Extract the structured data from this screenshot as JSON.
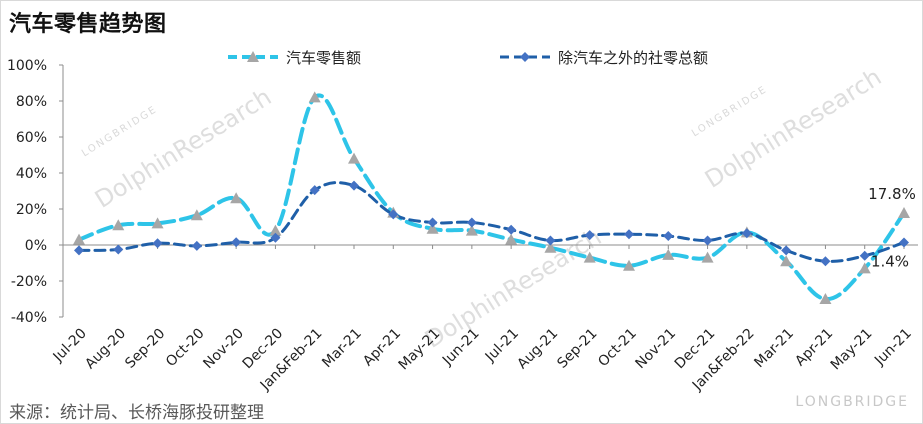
{
  "title": "汽车零售趋势图",
  "source": "来源：统计局、长桥海豚投研整理",
  "watermark": {
    "brand": "DolphinResearch",
    "sub": "LONGBRIDGE",
    "corner": "LONGBRIDGE"
  },
  "colors": {
    "auto": "#2ec4e8",
    "non_auto": "#1f5fa8",
    "marker_auto": "#a6a6a6",
    "marker_non_auto": "#4472c4"
  },
  "chart_data": {
    "type": "line",
    "title": "汽车零售趋势图",
    "categories": [
      "Jul-20",
      "Aug-20",
      "Sep-20",
      "Oct-20",
      "Nov-20",
      "Dec-20",
      "Jan&Feb-21",
      "Mar-21",
      "Apr-21",
      "May-21",
      "Jun-21",
      "Jul-21",
      "Aug-21",
      "Sep-21",
      "Oct-21",
      "Nov-21",
      "Dec-21",
      "Jan&Feb-22",
      "Mar-21",
      "Apr-21",
      "May-21",
      "Jun-21"
    ],
    "series": [
      {
        "name": "汽车零售额",
        "marker": "triangle",
        "values": [
          3.0,
          11.0,
          12.0,
          16.5,
          26.0,
          8.0,
          82.0,
          48.0,
          18.0,
          9.0,
          8.0,
          3.0,
          -1.5,
          -7.0,
          -11.5,
          -5.5,
          -7.0,
          7.0,
          -9.0,
          -30.0,
          -13.0,
          17.8
        ]
      },
      {
        "name": "除汽车之外的社零总额",
        "marker": "diamond",
        "values": [
          -3.0,
          -2.5,
          1.0,
          -0.5,
          1.5,
          4.0,
          30.5,
          33.0,
          17.0,
          12.5,
          12.5,
          8.5,
          2.5,
          5.5,
          6.0,
          5.0,
          2.5,
          6.5,
          -3.0,
          -9.0,
          -6.0,
          1.4
        ]
      }
    ],
    "y_ticks": [
      "100%",
      "80%",
      "60%",
      "40%",
      "20%",
      "0%",
      "-20%",
      "-40%"
    ],
    "ylim": [
      -40,
      100
    ],
    "y_unit": "%",
    "legend": "top",
    "grid": false,
    "annotations": [
      {
        "series": 0,
        "index": 21,
        "text": "17.8%"
      },
      {
        "series": 1,
        "index": 21,
        "text": "1.4%"
      }
    ]
  }
}
